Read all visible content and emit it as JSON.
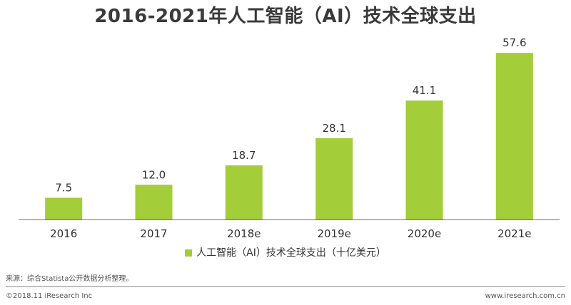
{
  "colors": {
    "bar": "#a3cd39",
    "axis": "#6e6e6e",
    "text": "#333333"
  },
  "chart_data": {
    "type": "bar",
    "title": "2016-2021年人工智能（AI）技术全球支出",
    "categories": [
      "2016",
      "2017",
      "2018e",
      "2019e",
      "2020e",
      "2021e"
    ],
    "series": [
      {
        "name": "人工智能（AI）技术全球支出（十亿美元）",
        "values": [
          7.5,
          12.0,
          18.7,
          28.1,
          41.1,
          57.6
        ],
        "value_labels": [
          "7.5",
          "12.0",
          "18.7",
          "28.1",
          "41.1",
          "57.6"
        ]
      }
    ],
    "ylim": [
      0,
      66
    ],
    "grid": false,
    "legend_position": "bottom"
  },
  "footer": {
    "source": "来源：综合Statista公开数据分析整理。",
    "copyright": "©2018.11 iResearch Inc",
    "website": "www.iresearch.com.cn"
  }
}
